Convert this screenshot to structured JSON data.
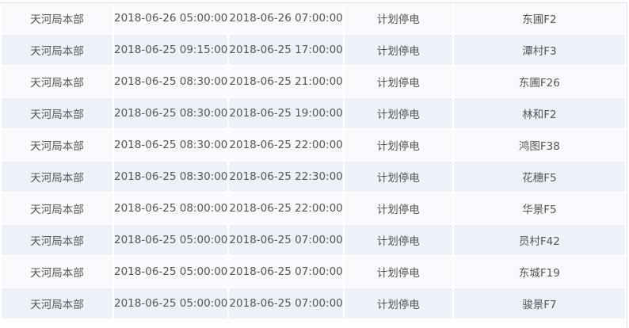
{
  "rows": [
    {
      "unit": "天河局本部",
      "start": "2018-06-26 05:00:00",
      "end": "2018-06-26 07:00:00",
      "type": "计划停电",
      "line": "东圃F2"
    },
    {
      "unit": "天河局本部",
      "start": "2018-06-25 09:15:00",
      "end": "2018-06-25 17:00:00",
      "type": "计划停电",
      "line": "潭村F3"
    },
    {
      "unit": "天河局本部",
      "start": "2018-06-25 08:30:00",
      "end": "2018-06-25 21:00:00",
      "type": "计划停电",
      "line": "东圃F26"
    },
    {
      "unit": "天河局本部",
      "start": "2018-06-25 08:30:00",
      "end": "2018-06-25 19:00:00",
      "type": "计划停电",
      "line": "林和F2"
    },
    {
      "unit": "天河局本部",
      "start": "2018-06-25 08:30:00",
      "end": "2018-06-25 22:00:00",
      "type": "计划停电",
      "line": "鸿图F38"
    },
    {
      "unit": "天河局本部",
      "start": "2018-06-25 08:30:00",
      "end": "2018-06-25 22:30:00",
      "type": "计划停电",
      "line": "花穗F5"
    },
    {
      "unit": "天河局本部",
      "start": "2018-06-25 08:00:00",
      "end": "2018-06-25 22:00:00",
      "type": "计划停电",
      "line": "华景F5"
    },
    {
      "unit": "天河局本部",
      "start": "2018-06-25 05:00:00",
      "end": "2018-06-25 07:00:00",
      "type": "计划停电",
      "line": "员村F42"
    },
    {
      "unit": "天河局本部",
      "start": "2018-06-25 05:00:00",
      "end": "2018-06-25 07:00:00",
      "type": "计划停电",
      "line": "东城F19"
    },
    {
      "unit": "天河局本部",
      "start": "2018-06-25 05:00:00",
      "end": "2018-06-25 07:00:00",
      "type": "计划停电",
      "line": "骏景F7"
    }
  ],
  "colors": {
    "row_odd": "#f7f9fd",
    "row_even": "#edf2f9",
    "text": "#555555"
  }
}
